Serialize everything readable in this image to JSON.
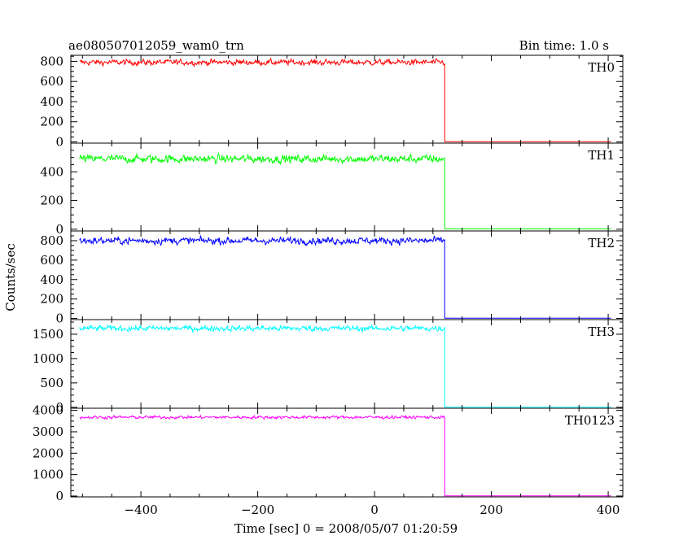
{
  "chart_data": {
    "type": "line",
    "title": "ae080507012059_wam0_trn",
    "subtitle": "Bin time: 1.0 s",
    "xlabel": "Time [sec] 0 = 2008/05/07 01:20:59",
    "ylabel": "Counts/sec",
    "xlim": [
      -520,
      425
    ],
    "xticks": [
      -400,
      -200,
      0,
      200,
      400
    ],
    "grid": false,
    "panels": [
      {
        "name": "TH0",
        "color": "#ff0000",
        "ylim": [
          -12,
          860
        ],
        "yticks": [
          0,
          200,
          400,
          600,
          800
        ],
        "series": {
          "x_range": [
            -505,
            120
          ],
          "level": 790,
          "noise": 22,
          "drop_at": 120,
          "after_level": 2,
          "x_end": 405
        }
      },
      {
        "name": "TH1",
        "color": "#00ff00",
        "ylim": [
          -12,
          600
        ],
        "yticks": [
          0,
          200,
          400
        ],
        "series": {
          "x_range": [
            -505,
            120
          ],
          "level": 490,
          "noise": 22,
          "drop_at": 120,
          "after_level": 3,
          "x_end": 405
        }
      },
      {
        "name": "TH2",
        "color": "#0000ff",
        "ylim": [
          -12,
          900
        ],
        "yticks": [
          0,
          200,
          400,
          600,
          800
        ],
        "series": {
          "x_range": [
            -505,
            120
          ],
          "level": 800,
          "noise": 28,
          "drop_at": 120,
          "after_level": 2,
          "x_end": 405
        }
      },
      {
        "name": "TH3",
        "color": "#00ffff",
        "ylim": [
          -20,
          1800
        ],
        "yticks": [
          0,
          500,
          1000,
          1500
        ],
        "series": {
          "x_range": [
            -505,
            120
          ],
          "level": 1620,
          "noise": 45,
          "drop_at": 120,
          "after_level": 3,
          "x_end": 405
        }
      },
      {
        "name": "TH0123",
        "color": "#ff00ff",
        "ylim": [
          -40,
          4100
        ],
        "yticks": [
          0,
          1000,
          2000,
          3000,
          4000
        ],
        "series": {
          "x_range": [
            -505,
            120
          ],
          "level": 3680,
          "noise": 55,
          "drop_at": 120,
          "after_level": 10,
          "x_end": 405
        }
      }
    ]
  }
}
